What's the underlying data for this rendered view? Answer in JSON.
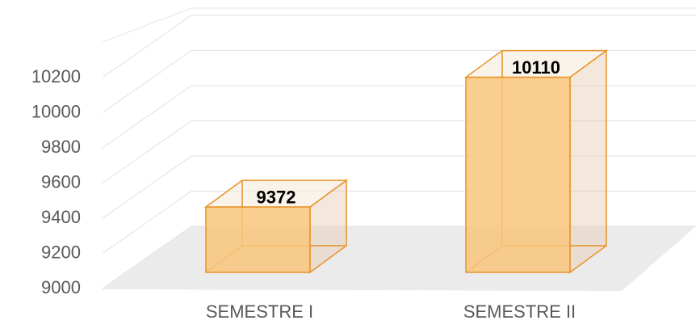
{
  "chart_data": {
    "type": "bar3d",
    "categories": [
      "SEMESTRE I",
      "SEMESTRE II"
    ],
    "values": [
      9372,
      10110
    ],
    "color": "#f9c67a",
    "ylim": [
      9000,
      10400
    ],
    "yticks": [
      9000,
      9200,
      9400,
      9600,
      9800,
      10000,
      10200
    ],
    "grid": true
  }
}
